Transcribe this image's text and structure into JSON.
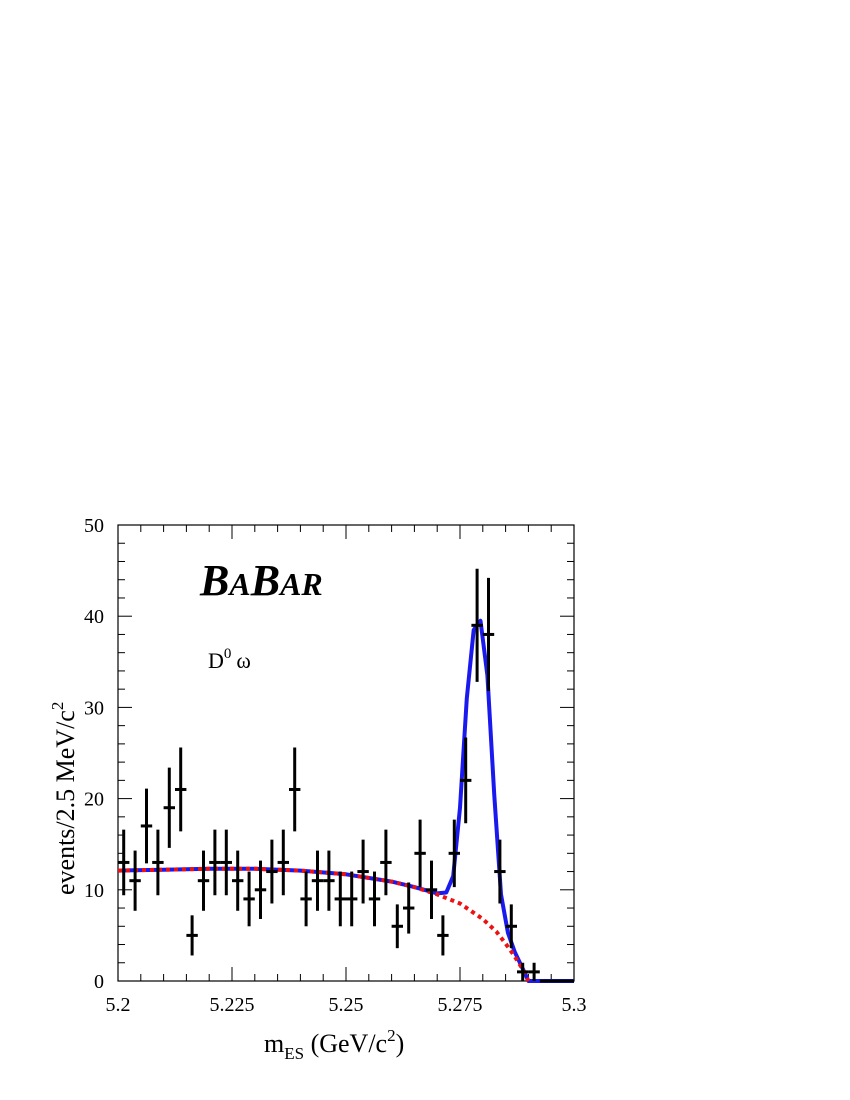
{
  "chart_data": {
    "type": "scatter",
    "logo": {
      "big1": "B",
      "small1": "A",
      "big2": "B",
      "small2": "AR"
    },
    "annotation": {
      "main": "D",
      "sup": "0",
      "tail": "ω"
    },
    "xlabel": {
      "main": "m",
      "sub": "ES",
      "mid": " (GeV/c",
      "sup": "2",
      "end": ")"
    },
    "ylabel": {
      "main": "events/2.5 MeV/c",
      "sup": "2"
    },
    "xlim": [
      5.2,
      5.3
    ],
    "ylim": [
      0,
      50
    ],
    "x_tick_labels": [
      "5.2",
      "5.225",
      "5.25",
      "5.275",
      "5.3"
    ],
    "y_tick_labels": [
      "0",
      "10",
      "20",
      "30",
      "40",
      "50"
    ],
    "bin_width": 0.0025,
    "series": [
      {
        "kind": "data_points",
        "x": [
          5.20125,
          5.20375,
          5.20625,
          5.20875,
          5.21125,
          5.21375,
          5.21625,
          5.21875,
          5.22125,
          5.22375,
          5.22625,
          5.22875,
          5.23125,
          5.23375,
          5.23625,
          5.23875,
          5.24125,
          5.24375,
          5.24625,
          5.24875,
          5.25125,
          5.25375,
          5.25625,
          5.25875,
          5.26125,
          5.26375,
          5.26625,
          5.26875,
          5.27125,
          5.27375,
          5.27625,
          5.27875,
          5.28125,
          5.28375,
          5.28625,
          5.28875,
          5.29125
        ],
        "y": [
          13,
          11,
          17,
          13,
          19,
          21,
          5,
          11,
          13,
          13,
          11,
          9,
          10,
          12,
          13,
          21,
          9,
          11,
          11,
          9,
          9,
          12,
          9,
          13,
          6,
          8,
          14,
          10,
          5,
          14,
          22,
          39,
          38,
          12,
          6,
          1,
          1
        ],
        "err": [
          3.6,
          3.3,
          4.1,
          3.6,
          4.4,
          4.6,
          2.2,
          3.3,
          3.6,
          3.6,
          3.3,
          3.0,
          3.2,
          3.5,
          3.6,
          4.6,
          3.0,
          3.3,
          3.3,
          3.0,
          3.0,
          3.5,
          3.0,
          3.6,
          2.4,
          2.8,
          3.7,
          3.2,
          2.2,
          3.7,
          4.7,
          6.2,
          6.2,
          3.5,
          2.4,
          1.0,
          1.0
        ]
      },
      {
        "kind": "background_fit",
        "color": "#ee1111",
        "style": "dotted",
        "x": [
          5.2,
          5.21,
          5.22,
          5.23,
          5.24,
          5.25,
          5.26,
          5.265,
          5.27,
          5.275,
          5.28,
          5.283,
          5.285,
          5.287,
          5.289,
          5.29
        ],
        "y": [
          12.1,
          12.2,
          12.3,
          12.3,
          12.1,
          11.7,
          10.9,
          10.3,
          9.5,
          8.5,
          6.8,
          5.4,
          4.1,
          2.7,
          1.1,
          0
        ]
      },
      {
        "kind": "total_fit",
        "color": "#1a1aee",
        "style": "solid",
        "x": [
          5.2,
          5.21,
          5.22,
          5.23,
          5.24,
          5.25,
          5.26,
          5.265,
          5.27,
          5.272,
          5.2735,
          5.275,
          5.2765,
          5.278,
          5.2795,
          5.281,
          5.2825,
          5.284,
          5.2855,
          5.287,
          5.289,
          5.29,
          5.3
        ],
        "y": [
          12.1,
          12.2,
          12.3,
          12.3,
          12.1,
          11.7,
          10.9,
          10.3,
          9.6,
          9.7,
          11.5,
          19.0,
          31.0,
          38.5,
          39.5,
          33.5,
          20.5,
          9.5,
          5.3,
          3.2,
          1.1,
          0,
          0
        ]
      }
    ]
  }
}
